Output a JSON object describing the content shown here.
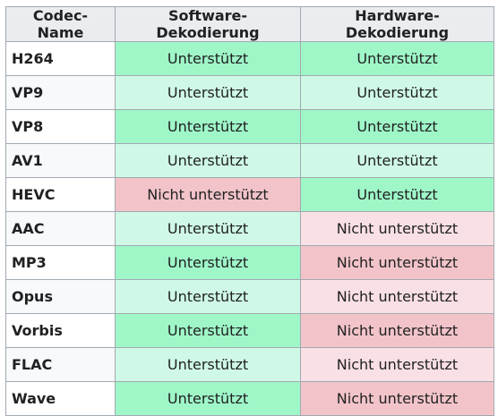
{
  "table": {
    "headers": [
      "Codec-Name",
      "Software-Dekodierung",
      "Hardware-Dekodierung"
    ],
    "rows": [
      {
        "name": "H264",
        "sw": "Unterstützt",
        "hw": "Unterstützt",
        "sw_style": "yes-strong",
        "hw_style": "yes-strong"
      },
      {
        "name": "VP9",
        "sw": "Unterstützt",
        "hw": "Unterstützt",
        "sw_style": "yes-light",
        "hw_style": "yes-light"
      },
      {
        "name": "VP8",
        "sw": "Unterstützt",
        "hw": "Unterstützt",
        "sw_style": "yes-strong",
        "hw_style": "yes-strong"
      },
      {
        "name": "AV1",
        "sw": "Unterstützt",
        "hw": "Unterstützt",
        "sw_style": "yes-light",
        "hw_style": "yes-light"
      },
      {
        "name": "HEVC",
        "sw": "Nicht unterstützt",
        "hw": "Unterstützt",
        "sw_style": "no-strong",
        "hw_style": "yes-strong"
      },
      {
        "name": "AAC",
        "sw": "Unterstützt",
        "hw": "Nicht unterstützt",
        "sw_style": "yes-light",
        "hw_style": "no-light"
      },
      {
        "name": "MP3",
        "sw": "Unterstützt",
        "hw": "Nicht unterstützt",
        "sw_style": "yes-strong",
        "hw_style": "no-strong"
      },
      {
        "name": "Opus",
        "sw": "Unterstützt",
        "hw": "Nicht unterstützt",
        "sw_style": "yes-light",
        "hw_style": "no-light"
      },
      {
        "name": "Vorbis",
        "sw": "Unterstützt",
        "hw": "Nicht unterstützt",
        "sw_style": "yes-strong",
        "hw_style": "no-strong"
      },
      {
        "name": "FLAC",
        "sw": "Unterstützt",
        "hw": "Nicht unterstützt",
        "sw_style": "yes-light",
        "hw_style": "no-light"
      },
      {
        "name": "Wave",
        "sw": "Unterstützt",
        "hw": "Nicht unterstützt",
        "sw_style": "yes-strong",
        "hw_style": "no-strong"
      }
    ]
  },
  "colors": {
    "supported_strong": "#9ff7c8",
    "supported_light": "#cff9e6",
    "unsupported_strong": "#f2c4c9",
    "unsupported_light": "#f9e0e4",
    "header_bg": "#eaecf0",
    "border": "#a2a9b1"
  }
}
